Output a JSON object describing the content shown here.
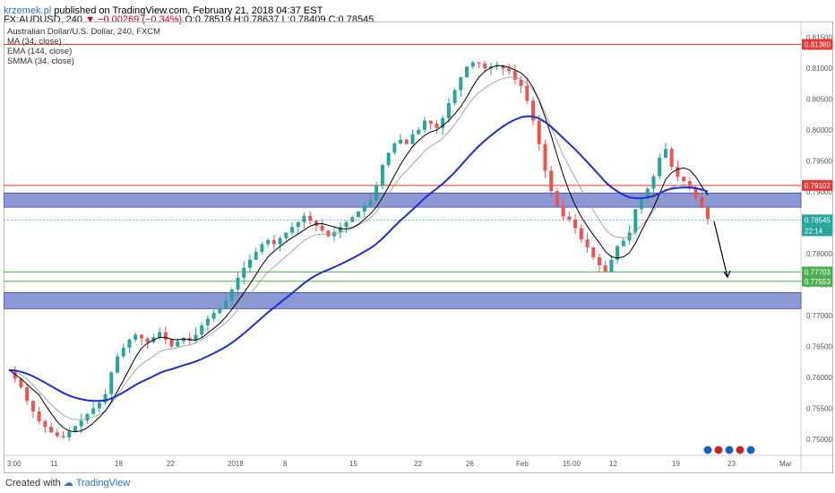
{
  "header": {
    "author": "krzemek.pl",
    "published": " published on TradingView.com, February 21, 2018 04:37 EST",
    "symbol": "FX:AUDUSD, 240",
    "change": "▼ −0.00269 (−0.34%)",
    "ohlc": " O:0.78519 H:0.78637 L:0.78409 C:0.78545"
  },
  "legend": {
    "instrument": "Australian Dollar/U.S. Dollar, 240, FXCM",
    "ma": "MA (34, close)",
    "ema": "EMA (144, close)",
    "smma": "SMMA (34, close)"
  },
  "footer": {
    "created_with": "Created with",
    "brand": "TradingView"
  },
  "chart_data": {
    "type": "candlestick",
    "title": "Australian Dollar/U.S. Dollar, 240, FXCM",
    "ylim": [
      0.7474,
      0.8175
    ],
    "y_ticks": [
      0.815,
      0.81,
      0.805,
      0.8,
      0.795,
      0.79,
      0.785,
      0.78,
      0.775,
      0.77,
      0.765,
      0.76,
      0.755,
      0.75
    ],
    "x_ticks": [
      "3:00",
      "11",
      "18",
      "22",
      "2018",
      "8",
      "15",
      "22",
      "26",
      "Feb",
      "15:00",
      "12",
      "19",
      "23",
      "Mar"
    ],
    "close_path": [
      [
        0,
        0.7612
      ],
      [
        1,
        0.7598
      ],
      [
        2,
        0.7584
      ],
      [
        3,
        0.7562
      ],
      [
        4,
        0.7545
      ],
      [
        5,
        0.7529
      ],
      [
        6,
        0.752
      ],
      [
        7,
        0.7511
      ],
      [
        8,
        0.7505
      ],
      [
        9,
        0.7503
      ],
      [
        10,
        0.7512
      ],
      [
        11,
        0.7521
      ],
      [
        12,
        0.753
      ],
      [
        13,
        0.7541
      ],
      [
        14,
        0.755
      ],
      [
        15,
        0.7559
      ],
      [
        16,
        0.7573
      ],
      [
        17,
        0.7608
      ],
      [
        18,
        0.7634
      ],
      [
        19,
        0.7648
      ],
      [
        20,
        0.7661
      ],
      [
        21,
        0.7669
      ],
      [
        22,
        0.7663
      ],
      [
        23,
        0.7657
      ],
      [
        24,
        0.7665
      ],
      [
        25,
        0.7673
      ],
      [
        26,
        0.7661
      ],
      [
        27,
        0.765
      ],
      [
        28,
        0.7658
      ],
      [
        29,
        0.7664
      ],
      [
        30,
        0.7659
      ],
      [
        31,
        0.7669
      ],
      [
        32,
        0.7684
      ],
      [
        33,
        0.7695
      ],
      [
        34,
        0.7704
      ],
      [
        35,
        0.7711
      ],
      [
        36,
        0.7724
      ],
      [
        37,
        0.7742
      ],
      [
        38,
        0.7761
      ],
      [
        39,
        0.7777
      ],
      [
        40,
        0.779
      ],
      [
        41,
        0.7803
      ],
      [
        42,
        0.7815
      ],
      [
        43,
        0.7822
      ],
      [
        44,
        0.7815
      ],
      [
        45,
        0.7825
      ],
      [
        46,
        0.7834
      ],
      [
        47,
        0.7843
      ],
      [
        48,
        0.7851
      ],
      [
        49,
        0.7861
      ],
      [
        50,
        0.7853
      ],
      [
        51,
        0.7845
      ],
      [
        52,
        0.7837
      ],
      [
        53,
        0.7828
      ],
      [
        54,
        0.7835
      ],
      [
        55,
        0.7843
      ],
      [
        56,
        0.7851
      ],
      [
        57,
        0.7859
      ],
      [
        58,
        0.7868
      ],
      [
        59,
        0.7877
      ],
      [
        60,
        0.7886
      ],
      [
        61,
        0.791
      ],
      [
        62,
        0.7943
      ],
      [
        63,
        0.7963
      ],
      [
        64,
        0.7978
      ],
      [
        65,
        0.7984
      ],
      [
        66,
        0.7977
      ],
      [
        67,
        0.7993
      ],
      [
        68,
        0.8
      ],
      [
        69,
        0.8015
      ],
      [
        70,
        0.801
      ],
      [
        71,
        0.8003
      ],
      [
        72,
        0.8019
      ],
      [
        73,
        0.8043
      ],
      [
        74,
        0.8064
      ],
      [
        75,
        0.8085
      ],
      [
        76,
        0.8102
      ],
      [
        77,
        0.8109
      ],
      [
        78,
        0.8107
      ],
      [
        79,
        0.8099
      ],
      [
        80,
        0.8102
      ],
      [
        81,
        0.8104
      ],
      [
        82,
        0.8099
      ],
      [
        83,
        0.8095
      ],
      [
        84,
        0.8081
      ],
      [
        85,
        0.8071
      ],
      [
        86,
        0.8047
      ],
      [
        87,
        0.8015
      ],
      [
        88,
        0.7977
      ],
      [
        89,
        0.7934
      ],
      [
        90,
        0.7901
      ],
      [
        91,
        0.7876
      ],
      [
        92,
        0.786
      ],
      [
        93,
        0.7855
      ],
      [
        94,
        0.7841
      ],
      [
        95,
        0.7823
      ],
      [
        96,
        0.781
      ],
      [
        97,
        0.7794
      ],
      [
        98,
        0.7781
      ],
      [
        99,
        0.7771
      ],
      [
        100,
        0.779
      ],
      [
        101,
        0.7812
      ],
      [
        102,
        0.7821
      ],
      [
        103,
        0.7834
      ],
      [
        104,
        0.7872
      ],
      [
        105,
        0.7891
      ],
      [
        106,
        0.7905
      ],
      [
        107,
        0.7925
      ],
      [
        108,
        0.7955
      ],
      [
        109,
        0.7969
      ],
      [
        110,
        0.794
      ],
      [
        111,
        0.7924
      ],
      [
        112,
        0.7917
      ],
      [
        113,
        0.7905
      ],
      [
        114,
        0.7891
      ],
      [
        115,
        0.7874
      ],
      [
        116,
        0.7856
      ]
    ],
    "levels": [
      {
        "label": "0.81380",
        "value": 0.8138,
        "color": "#e53935"
      },
      {
        "label": "0.79102",
        "value": 0.79102,
        "color": "#e53935"
      },
      {
        "label": "0.78545",
        "value": 0.78545,
        "color": "#26a69a"
      },
      {
        "label": "22:14",
        "value": 0.7837,
        "color": "#26a69a"
      },
      {
        "label": "0.77703",
        "value": 0.77703,
        "color": "#4caf50"
      },
      {
        "label": "0.77553",
        "value": 0.77553,
        "color": "#4caf50"
      }
    ],
    "zones": [
      [
        0.7875,
        0.7898
      ],
      [
        0.7711,
        0.7737
      ]
    ],
    "series": [
      "MA (34, close)",
      "EMA (144, close)",
      "SMMA (34, close)"
    ],
    "colors": {
      "up": "#26a69a",
      "down": "#ef5350",
      "ema": "#1e2fcf",
      "ma": "#000000",
      "smma": "#9e9e9e",
      "zone": "#5c6bc0"
    }
  }
}
